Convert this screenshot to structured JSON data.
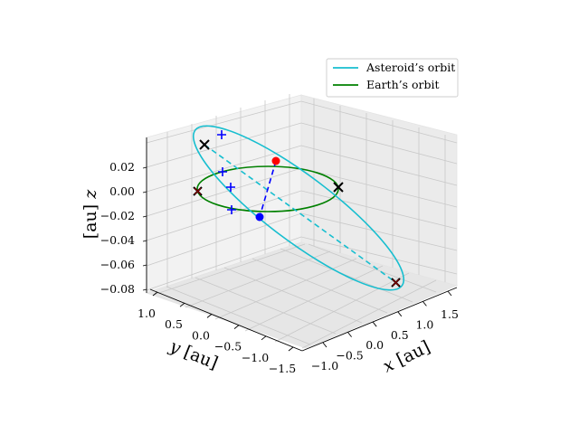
{
  "chart_data": {
    "type": "line",
    "projection": "3d",
    "legend_position": "upper right",
    "grid": true,
    "axes": {
      "x": {
        "label_var": "x",
        "label_unit": "[au]",
        "ticks": [
          "−1.0",
          "−0.5",
          "0.0",
          "0.5",
          "1.0",
          "1.5"
        ],
        "tick_values": [
          -1.0,
          -0.5,
          0.0,
          0.5,
          1.0,
          1.5
        ],
        "range": [
          -1.2,
          1.8
        ]
      },
      "y": {
        "label_var": "y",
        "label_unit": "[au]",
        "ticks": [
          "1.0",
          "0.5",
          "0.0",
          "−0.5",
          "−1.0",
          "−1.5"
        ],
        "tick_values": [
          1.0,
          0.5,
          0.0,
          -0.5,
          -1.0,
          -1.5
        ],
        "range": [
          -1.8,
          1.2
        ]
      },
      "z": {
        "label_var": "z",
        "label_unit": "[au]",
        "ticks": [
          "0.02",
          "0.00",
          "−0.02",
          "−0.04",
          "−0.06",
          "−0.08"
        ],
        "tick_values": [
          0.02,
          0.0,
          -0.02,
          -0.04,
          -0.06,
          -0.08
        ],
        "range": [
          -0.085,
          0.035
        ]
      }
    },
    "series": [
      {
        "name": "Asteroid’s orbit",
        "color": "#17becf",
        "kind": "ellipse-orbit",
        "semi_major_axis_au": 1.35,
        "eccentricity": 0.33,
        "inclination_deg": 3.5
      },
      {
        "name": "Earth’s orbit",
        "color": "#008000",
        "kind": "circle-orbit",
        "radius_au": 1.0,
        "z": 0.0
      }
    ],
    "markers": {
      "red_dot": {
        "x": 0.55,
        "y": 0.75,
        "z": 0.02,
        "color": "#ff0000"
      },
      "blue_dot": {
        "x": -0.45,
        "y": -0.15,
        "z": -0.02,
        "color": "#0000ff"
      },
      "black_x": [
        {
          "x": -0.6,
          "y": 1.0,
          "z": 0.035
        },
        {
          "x": 1.0,
          "y": 0.0,
          "z": 0.0
        }
      ],
      "dark_red_x": [
        {
          "x": -0.95,
          "y": 0.3,
          "z": 0.0
        },
        {
          "x": 1.45,
          "y": -1.6,
          "z": -0.08
        }
      ],
      "blue_plus": [
        {
          "x": -0.45,
          "y": 1.0,
          "z": 0.035
        },
        {
          "x": -0.55,
          "y": 0.55,
          "z": 0.012
        },
        {
          "x": -0.55,
          "y": 0.3,
          "z": 0.0
        },
        {
          "x": -0.7,
          "y": 0.05,
          "z": -0.015
        }
      ]
    }
  }
}
